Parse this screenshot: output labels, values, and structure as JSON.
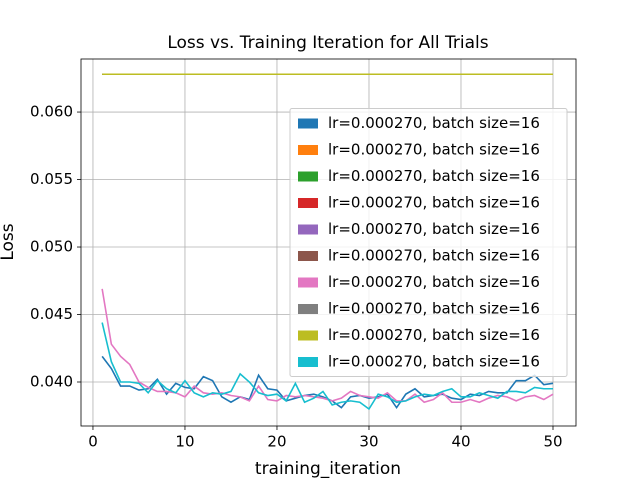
{
  "chart_data": {
    "type": "line",
    "title": "Loss vs. Training Iteration for All Trials",
    "xlabel": "training_iteration",
    "ylabel": "Loss",
    "x": [
      1,
      2,
      3,
      4,
      5,
      6,
      7,
      8,
      9,
      10,
      11,
      12,
      13,
      14,
      15,
      16,
      17,
      18,
      19,
      20,
      21,
      22,
      23,
      24,
      25,
      26,
      27,
      28,
      29,
      30,
      31,
      32,
      33,
      34,
      35,
      36,
      37,
      38,
      39,
      40,
      41,
      42,
      43,
      44,
      45,
      46,
      47,
      48,
      49,
      50
    ],
    "xlim": [
      -1.3,
      52.5
    ],
    "xticks": [
      0,
      10,
      20,
      30,
      40,
      50
    ],
    "ylim": [
      0.03674,
      0.06393
    ],
    "yticks": [
      {
        "value": 0.04,
        "label": "0.040"
      },
      {
        "value": 0.045,
        "label": "0.045"
      },
      {
        "value": 0.05,
        "label": "0.050"
      },
      {
        "value": 0.055,
        "label": "0.055"
      },
      {
        "value": 0.06,
        "label": "0.060"
      }
    ],
    "grid": true,
    "legend": "center right",
    "series": [
      {
        "name": "lr=0.000270, batch size=16",
        "color": "#1f77b4",
        "values": [
          0.0419,
          0.041,
          0.0397,
          0.0397,
          0.0394,
          0.0395,
          0.0402,
          0.0391,
          0.0399,
          0.0396,
          0.0395,
          0.0404,
          0.0401,
          0.0389,
          0.0385,
          0.0389,
          0.0387,
          0.0405,
          0.0395,
          0.0394,
          0.0386,
          0.0388,
          0.039,
          0.0391,
          0.0389,
          0.0386,
          0.0381,
          0.0389,
          0.039,
          0.0388,
          0.0389,
          0.0391,
          0.0381,
          0.0391,
          0.0395,
          0.0389,
          0.039,
          0.0391,
          0.0388,
          0.0387,
          0.0391,
          0.039,
          0.0393,
          0.0392,
          0.0392,
          0.0401,
          0.0401,
          0.0405,
          0.0398,
          0.0399
        ]
      },
      {
        "name": "lr=0.000270, batch size=16",
        "color": "#ff7f0e",
        "values": [
          0.0628,
          0.0628,
          0.0628,
          0.0628,
          0.0628,
          0.0628,
          0.0628,
          0.0628,
          0.0628,
          0.0628,
          0.0628,
          0.0628,
          0.0628,
          0.0628,
          0.0628,
          0.0628,
          0.0628,
          0.0628,
          0.0628,
          0.0628,
          0.0628,
          0.0628,
          0.0628,
          0.0628,
          0.0628,
          0.0628,
          0.0628,
          0.0628,
          0.0628,
          0.0628,
          0.0628,
          0.0628,
          0.0628,
          0.0628,
          0.0628,
          0.0628,
          0.0628,
          0.0628,
          0.0628,
          0.0628,
          0.0628,
          0.0628,
          0.0628,
          0.0628,
          0.0628,
          0.0628,
          0.0628,
          0.0628,
          0.0628,
          0.0628
        ]
      },
      {
        "name": "lr=0.000270, batch size=16",
        "color": "#2ca02c",
        "values": [
          0.0628,
          0.0628,
          0.0628,
          0.0628,
          0.0628,
          0.0628,
          0.0628,
          0.0628,
          0.0628,
          0.0628,
          0.0628,
          0.0628,
          0.0628,
          0.0628,
          0.0628,
          0.0628,
          0.0628,
          0.0628,
          0.0628,
          0.0628,
          0.0628,
          0.0628,
          0.0628,
          0.0628,
          0.0628,
          0.0628,
          0.0628,
          0.0628,
          0.0628,
          0.0628,
          0.0628,
          0.0628,
          0.0628,
          0.0628,
          0.0628,
          0.0628,
          0.0628,
          0.0628,
          0.0628,
          0.0628,
          0.0628,
          0.0628,
          0.0628,
          0.0628,
          0.0628,
          0.0628,
          0.0628,
          0.0628,
          0.0628,
          0.0628
        ]
      },
      {
        "name": "lr=0.000270, batch size=16",
        "color": "#d62728",
        "values": [
          0.0628,
          0.0628,
          0.0628,
          0.0628,
          0.0628,
          0.0628,
          0.0628,
          0.0628,
          0.0628,
          0.0628,
          0.0628,
          0.0628,
          0.0628,
          0.0628,
          0.0628,
          0.0628,
          0.0628,
          0.0628,
          0.0628,
          0.0628,
          0.0628,
          0.0628,
          0.0628,
          0.0628,
          0.0628,
          0.0628,
          0.0628,
          0.0628,
          0.0628,
          0.0628,
          0.0628,
          0.0628,
          0.0628,
          0.0628,
          0.0628,
          0.0628,
          0.0628,
          0.0628,
          0.0628,
          0.0628,
          0.0628,
          0.0628,
          0.0628,
          0.0628,
          0.0628,
          0.0628,
          0.0628,
          0.0628,
          0.0628,
          0.0628
        ]
      },
      {
        "name": "lr=0.000270, batch size=16",
        "color": "#9467bd",
        "values": [
          0.0628,
          0.0628,
          0.0628,
          0.0628,
          0.0628,
          0.0628,
          0.0628,
          0.0628,
          0.0628,
          0.0628,
          0.0628,
          0.0628,
          0.0628,
          0.0628,
          0.0628,
          0.0628,
          0.0628,
          0.0628,
          0.0628,
          0.0628,
          0.0628,
          0.0628,
          0.0628,
          0.0628,
          0.0628,
          0.0628,
          0.0628,
          0.0628,
          0.0628,
          0.0628,
          0.0628,
          0.0628,
          0.0628,
          0.0628,
          0.0628,
          0.0628,
          0.0628,
          0.0628,
          0.0628,
          0.0628,
          0.0628,
          0.0628,
          0.0628,
          0.0628,
          0.0628,
          0.0628,
          0.0628,
          0.0628,
          0.0628,
          0.0628
        ]
      },
      {
        "name": "lr=0.000270, batch size=16",
        "color": "#8c564b",
        "values": [
          0.0628,
          0.0628,
          0.0628,
          0.0628,
          0.0628,
          0.0628,
          0.0628,
          0.0628,
          0.0628,
          0.0628,
          0.0628,
          0.0628,
          0.0628,
          0.0628,
          0.0628,
          0.0628,
          0.0628,
          0.0628,
          0.0628,
          0.0628,
          0.0628,
          0.0628,
          0.0628,
          0.0628,
          0.0628,
          0.0628,
          0.0628,
          0.0628,
          0.0628,
          0.0628,
          0.0628,
          0.0628,
          0.0628,
          0.0628,
          0.0628,
          0.0628,
          0.0628,
          0.0628,
          0.0628,
          0.0628,
          0.0628,
          0.0628,
          0.0628,
          0.0628,
          0.0628,
          0.0628,
          0.0628,
          0.0628,
          0.0628,
          0.0628
        ]
      },
      {
        "name": "lr=0.000270, batch size=16",
        "color": "#e377c2",
        "values": [
          0.0469,
          0.0428,
          0.0419,
          0.0413,
          0.04,
          0.0396,
          0.0393,
          0.0393,
          0.0392,
          0.0389,
          0.0397,
          0.0392,
          0.0391,
          0.0392,
          0.039,
          0.0389,
          0.0386,
          0.0397,
          0.0387,
          0.0386,
          0.039,
          0.0389,
          0.039,
          0.0389,
          0.0388,
          0.0386,
          0.0388,
          0.0393,
          0.039,
          0.0389,
          0.0388,
          0.0392,
          0.0386,
          0.0386,
          0.0391,
          0.0385,
          0.0387,
          0.0392,
          0.0385,
          0.0385,
          0.0387,
          0.0385,
          0.0388,
          0.039,
          0.0389,
          0.0386,
          0.0389,
          0.039,
          0.0387,
          0.0391
        ]
      },
      {
        "name": "lr=0.000270, batch size=16",
        "color": "#7f7f7f",
        "values": [
          0.0628,
          0.0628,
          0.0628,
          0.0628,
          0.0628,
          0.0628,
          0.0628,
          0.0628,
          0.0628,
          0.0628,
          0.0628,
          0.0628,
          0.0628,
          0.0628,
          0.0628,
          0.0628,
          0.0628,
          0.0628,
          0.0628,
          0.0628,
          0.0628,
          0.0628,
          0.0628,
          0.0628,
          0.0628,
          0.0628,
          0.0628,
          0.0628,
          0.0628,
          0.0628,
          0.0628,
          0.0628,
          0.0628,
          0.0628,
          0.0628,
          0.0628,
          0.0628,
          0.0628,
          0.0628,
          0.0628,
          0.0628,
          0.0628,
          0.0628,
          0.0628,
          0.0628,
          0.0628,
          0.0628,
          0.0628,
          0.0628,
          0.0628
        ]
      },
      {
        "name": "lr=0.000270, batch size=16",
        "color": "#bcbd22",
        "values": [
          0.0628,
          0.0628,
          0.0628,
          0.0628,
          0.0628,
          0.0628,
          0.0628,
          0.0628,
          0.0628,
          0.0628,
          0.0628,
          0.0628,
          0.0628,
          0.0628,
          0.0628,
          0.0628,
          0.0628,
          0.0628,
          0.0628,
          0.0628,
          0.0628,
          0.0628,
          0.0628,
          0.0628,
          0.0628,
          0.0628,
          0.0628,
          0.0628,
          0.0628,
          0.0628,
          0.0628,
          0.0628,
          0.0628,
          0.0628,
          0.0628,
          0.0628,
          0.0628,
          0.0628,
          0.0628,
          0.0628,
          0.0628,
          0.0628,
          0.0628,
          0.0628,
          0.0628,
          0.0628,
          0.0628,
          0.0628,
          0.0628,
          0.0628
        ]
      },
      {
        "name": "lr=0.000270, batch size=16",
        "color": "#17becf",
        "values": [
          0.0444,
          0.0415,
          0.04,
          0.04,
          0.0399,
          0.0392,
          0.0401,
          0.0395,
          0.0392,
          0.0401,
          0.0392,
          0.0389,
          0.0392,
          0.0391,
          0.0393,
          0.0406,
          0.04,
          0.0392,
          0.039,
          0.0391,
          0.0386,
          0.0399,
          0.0385,
          0.0388,
          0.0393,
          0.0383,
          0.0385,
          0.0386,
          0.0385,
          0.038,
          0.0391,
          0.0389,
          0.0385,
          0.0386,
          0.0389,
          0.0391,
          0.039,
          0.0393,
          0.0395,
          0.0389,
          0.0389,
          0.0392,
          0.039,
          0.0388,
          0.0393,
          0.0393,
          0.0392,
          0.0396,
          0.0395,
          0.0395
        ]
      }
    ]
  }
}
